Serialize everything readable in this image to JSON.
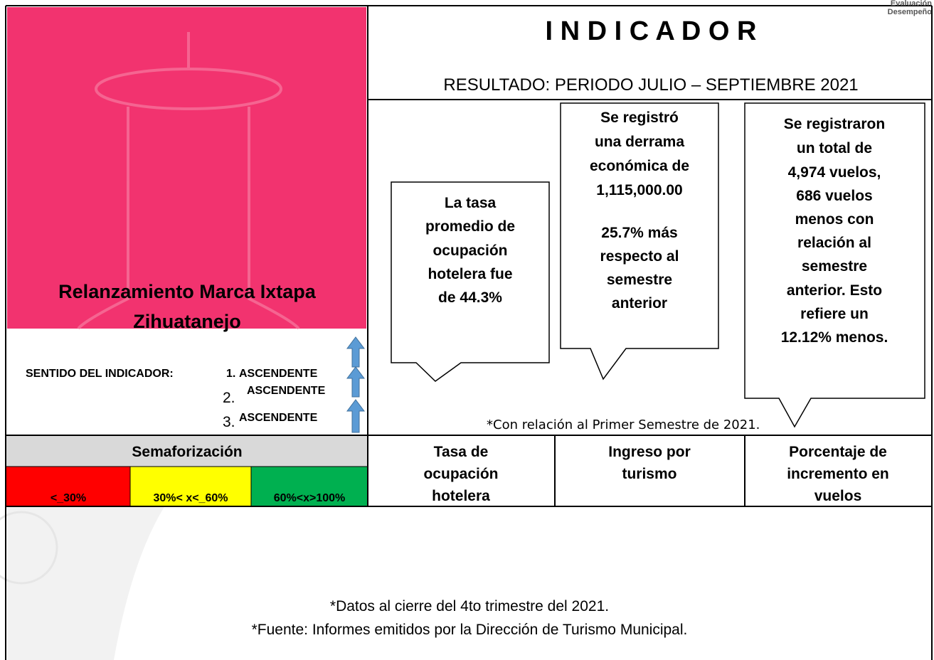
{
  "header": {
    "corner_lines": [
      "Evaluación",
      "Desempeño"
    ],
    "title": "I N D I C A D O R",
    "subtitle": "RESULTADO: PERIODO JULIO – SEPTIEMBRE 2021"
  },
  "indicator": {
    "name_lines": [
      "Relanzamiento Marca Ixtapa",
      "Zihuatanejo"
    ],
    "direction_label": "SENTIDO DEL INDICADOR:",
    "directions": [
      {
        "number": "1.",
        "label": "ASCENDENTE"
      },
      {
        "number": "2.",
        "label": "ASCENDENTE"
      },
      {
        "number": "3.",
        "label": "ASCENDENTE"
      }
    ]
  },
  "callouts": [
    {
      "paragraphs": [
        [
          "La tasa",
          "promedio de",
          "ocupación",
          "hotelera fue",
          "de 44.3%"
        ]
      ]
    },
    {
      "paragraphs": [
        [
          "Se registró",
          "una derrama",
          "económica de",
          "1,115,000.00"
        ],
        [
          "25.7% más",
          "respecto al",
          "semestre",
          "anterior"
        ]
      ]
    },
    {
      "paragraphs": [
        [
          "Se registraron",
          "un total de",
          "4,974 vuelos,",
          "686 vuelos",
          "menos con",
          "relación al",
          "semestre",
          "anterior. Esto",
          "refiere un",
          "12.12% menos."
        ]
      ]
    }
  ],
  "note": "*Con relación al Primer Semestre de 2021.",
  "semaforizacion": {
    "title": "Semaforización",
    "levels": [
      "<_30%",
      "30%< x<_60%",
      "60%<x>100%"
    ]
  },
  "columns": [
    {
      "lines": [
        "Tasa de",
        "ocupación",
        "hotelera"
      ]
    },
    {
      "lines": [
        "Ingreso por",
        "turismo"
      ]
    },
    {
      "lines": [
        "Porcentaje de",
        "incremento en",
        "vuelos"
      ]
    }
  ],
  "footer": {
    "lines": [
      "*Datos al cierre del 4to trimestre del 2021.",
      "*Fuente: Informes emitidos por la Dirección de Turismo Municipal."
    ]
  }
}
